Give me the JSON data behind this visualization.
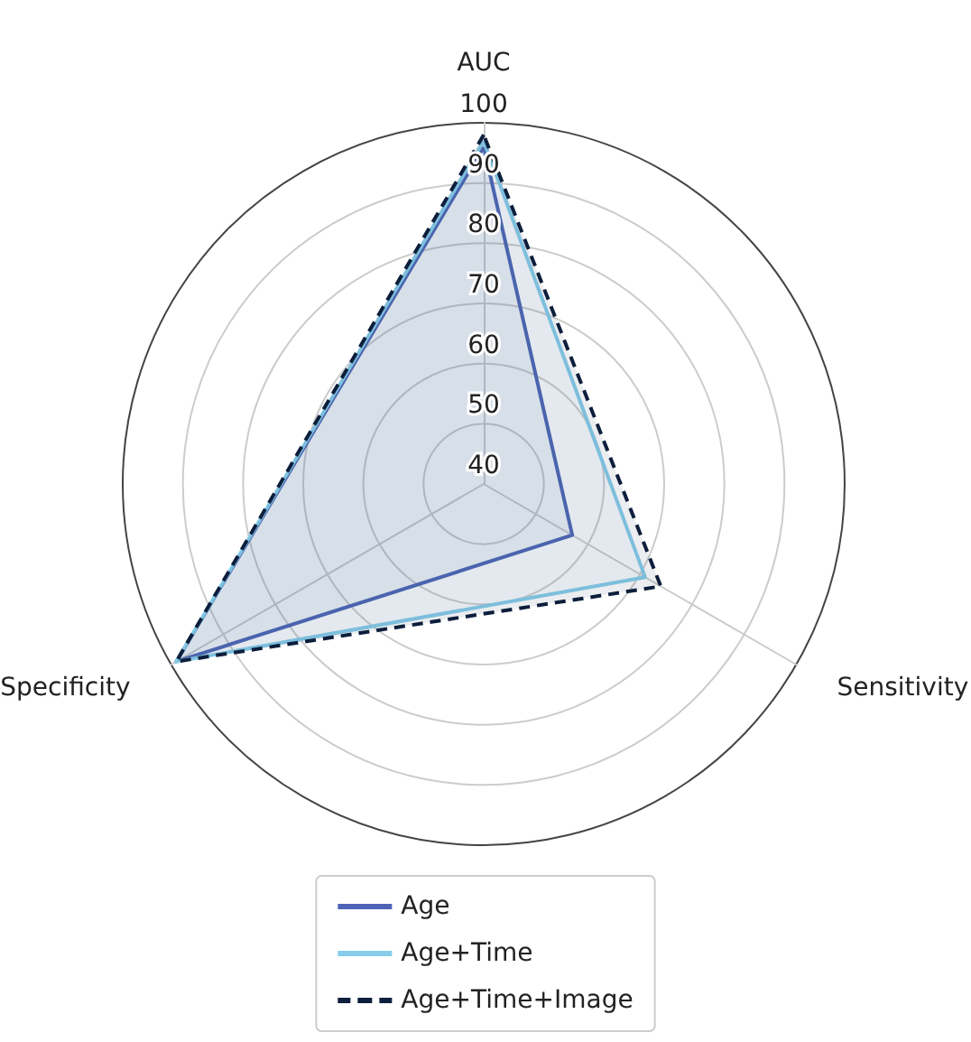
{
  "chart_data": {
    "type": "radar",
    "categories": [
      "AUC",
      "Sensitivity",
      "Specificity"
    ],
    "series": [
      {
        "name": "Age",
        "color": "#4c63b6",
        "values": [
          96,
          57,
          99
        ],
        "line_style": "solid"
      },
      {
        "name": "Age+Time",
        "color": "#87ceeb",
        "values": [
          97,
          71,
          99
        ],
        "line_style": "solid"
      },
      {
        "name": "Age+Time+Image",
        "color": "#0d1f3c",
        "values": [
          98,
          74,
          99
        ],
        "line_style": "dashed"
      }
    ],
    "ylim": [
      40,
      100
    ],
    "yticks": [
      40,
      50,
      60,
      70,
      80,
      90,
      100
    ],
    "grid": true,
    "legend": "bottom",
    "marker": "none"
  }
}
